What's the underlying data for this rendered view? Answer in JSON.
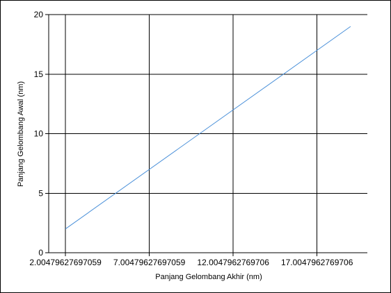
{
  "chart_data": {
    "type": "line",
    "title": "",
    "xlabel": "Panjang Gelombang Akhir (nm)",
    "ylabel": "Panjang Gelombang Awal (nm)",
    "x_tick_labels": [
      "2.00479627697059",
      "7.00479627697059",
      "12.0047962769706",
      "17.0047962769706"
    ],
    "y_tick_labels": [
      "0",
      "5",
      "10",
      "15",
      "20"
    ],
    "xlim": [
      1.00479627697059,
      20.00479627697059
    ],
    "ylim": [
      0,
      20
    ],
    "grid": true,
    "series": [
      {
        "color": "#4a90d9",
        "x": [
          2.00479627697059,
          19.00479627697059
        ],
        "y": [
          2,
          19
        ]
      }
    ]
  }
}
